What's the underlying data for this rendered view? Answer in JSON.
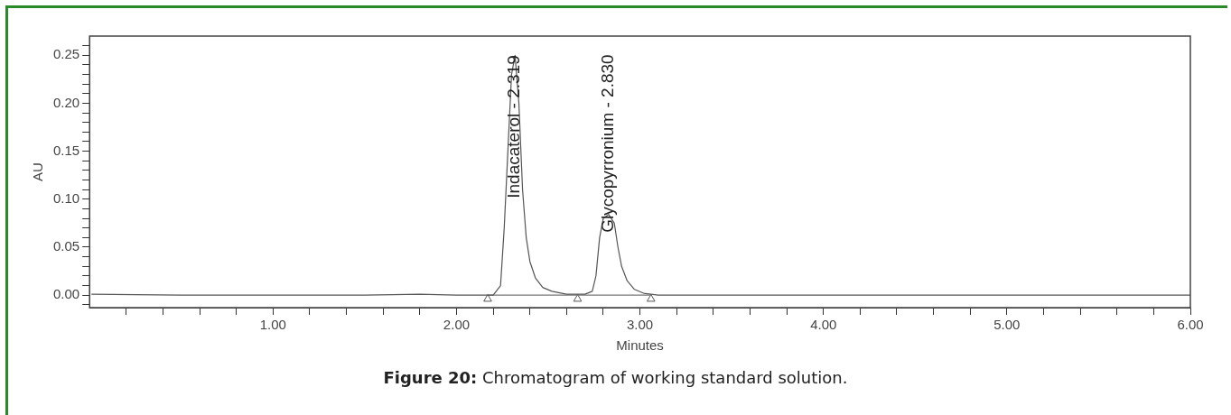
{
  "chart_data": {
    "type": "line",
    "title": "Figure 20: Chromatogram of working standard solution.",
    "xlabel": "Minutes",
    "ylabel": "AU",
    "xlim": [
      0,
      6
    ],
    "ylim": [
      -0.013,
      0.27
    ],
    "xticks": [
      {
        "value": 0.2,
        "label": null
      },
      {
        "value": 0.4,
        "label": null
      },
      {
        "value": 0.6,
        "label": null
      },
      {
        "value": 0.8,
        "label": null
      },
      {
        "value": 1,
        "label": "1.00"
      },
      {
        "value": 1.2,
        "label": null
      },
      {
        "value": 1.4,
        "label": null
      },
      {
        "value": 1.6,
        "label": null
      },
      {
        "value": 1.8,
        "label": null
      },
      {
        "value": 2,
        "label": "2.00"
      },
      {
        "value": 2.2,
        "label": null
      },
      {
        "value": 2.4,
        "label": null
      },
      {
        "value": 2.6,
        "label": null
      },
      {
        "value": 2.8,
        "label": null
      },
      {
        "value": 3,
        "label": "3.00"
      },
      {
        "value": 3.2,
        "label": null
      },
      {
        "value": 3.4,
        "label": null
      },
      {
        "value": 3.6,
        "label": null
      },
      {
        "value": 3.8,
        "label": null
      },
      {
        "value": 4,
        "label": "4.00"
      },
      {
        "value": 4.2,
        "label": null
      },
      {
        "value": 4.4,
        "label": null
      },
      {
        "value": 4.6,
        "label": null
      },
      {
        "value": 4.8,
        "label": null
      },
      {
        "value": 5,
        "label": "5.00"
      },
      {
        "value": 5.2,
        "label": null
      },
      {
        "value": 5.4,
        "label": null
      },
      {
        "value": 5.6,
        "label": null
      },
      {
        "value": 5.8,
        "label": null
      },
      {
        "value": 6,
        "label": "6.00"
      }
    ],
    "yticks": [
      {
        "value": -0.01,
        "label": null
      },
      {
        "value": 0,
        "label": "0.00"
      },
      {
        "value": 0.01,
        "label": null
      },
      {
        "value": 0.02,
        "label": null
      },
      {
        "value": 0.03,
        "label": null
      },
      {
        "value": 0.04,
        "label": null
      },
      {
        "value": 0.05,
        "label": "0.05"
      },
      {
        "value": 0.06,
        "label": null
      },
      {
        "value": 0.07,
        "label": null
      },
      {
        "value": 0.08,
        "label": null
      },
      {
        "value": 0.09,
        "label": null
      },
      {
        "value": 0.1,
        "label": "0.10"
      },
      {
        "value": 0.11,
        "label": null
      },
      {
        "value": 0.12,
        "label": null
      },
      {
        "value": 0.13,
        "label": null
      },
      {
        "value": 0.14,
        "label": null
      },
      {
        "value": 0.15,
        "label": "0.15"
      },
      {
        "value": 0.16,
        "label": null
      },
      {
        "value": 0.17,
        "label": null
      },
      {
        "value": 0.18,
        "label": null
      },
      {
        "value": 0.19,
        "label": null
      },
      {
        "value": 0.2,
        "label": "0.20"
      },
      {
        "value": 0.21,
        "label": null
      },
      {
        "value": 0.22,
        "label": null
      },
      {
        "value": 0.23,
        "label": null
      },
      {
        "value": 0.24,
        "label": null
      },
      {
        "value": 0.25,
        "label": "0.25"
      },
      {
        "value": 0.26,
        "label": null
      }
    ],
    "grid": false,
    "legend": false,
    "marker": "none",
    "line_style": "solid",
    "series": [
      {
        "color": "#555555",
        "x": [
          0.01,
          0.5,
          1.0,
          1.5,
          1.8,
          2.0,
          2.2,
          2.24,
          2.26,
          2.28,
          2.3,
          2.319,
          2.34,
          2.36,
          2.38,
          2.4,
          2.43,
          2.47,
          2.52,
          2.6,
          2.7,
          2.74,
          2.76,
          2.78,
          2.8,
          2.83,
          2.86,
          2.88,
          2.9,
          2.93,
          2.97,
          3.02,
          3.1,
          3.5,
          4.0,
          4.5,
          5.0,
          5.5,
          6.0
        ],
        "values": [
          0.001,
          0,
          0,
          0,
          0.001,
          0,
          0,
          0.01,
          0.07,
          0.15,
          0.23,
          0.25,
          0.2,
          0.11,
          0.06,
          0.035,
          0.018,
          0.008,
          0.004,
          0.001,
          0.001,
          0.004,
          0.02,
          0.06,
          0.08,
          0.084,
          0.075,
          0.05,
          0.03,
          0.015,
          0.006,
          0.002,
          0,
          0,
          0,
          0,
          0,
          0,
          0
        ]
      },
      {
        "color": "#777777",
        "x": [
          2.17,
          3.06
        ],
        "values": [
          0,
          0
        ]
      },
      {
        "type": "scatter",
        "marker": "triangle",
        "color": "#555555",
        "x": [
          2.17,
          2.66,
          3.06
        ],
        "values": [
          -0.004,
          -0.004,
          -0.004
        ]
      }
    ],
    "annotations": [
      {
        "text": "Indacaterol - 2.319",
        "x": 2.319,
        "y": 0.25
      },
      {
        "text": "Glycopyrronium - 2.830",
        "x": 2.83,
        "y": 0.084
      }
    ]
  }
}
